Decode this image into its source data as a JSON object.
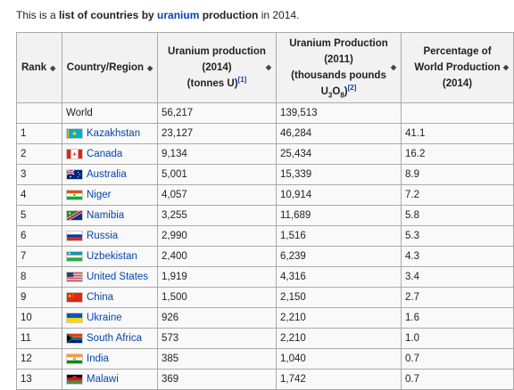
{
  "intro": {
    "prefix": "This is a ",
    "bold1": "list of countries by ",
    "link": "uranium",
    "bold2": " production",
    "suffix": " in 2014."
  },
  "table": {
    "headers": {
      "rank": "Rank",
      "country": "Country/Region",
      "prod2014_line1": "Uranium production",
      "prod2014_line2": "(2014)",
      "prod2014_line3": "(tonnes U)",
      "prod2014_ref": "[1]",
      "prod2011_line1": "Uranium Production",
      "prod2011_line2": "(2011)",
      "prod2011_line3": "(thousands pounds",
      "prod2011_u": "U",
      "prod2011_sub1": "3",
      "prod2011_o": "O",
      "prod2011_sub2": "8",
      "prod2011_close": ")",
      "prod2011_ref": "[2]",
      "pct_line1": "Percentage of",
      "pct_line2": "World Production",
      "pct_line3": "(2014)"
    },
    "world": {
      "rank": "",
      "country": "World",
      "prod2014": "56,217",
      "prod2011": "139,513",
      "pct": ""
    },
    "rows": [
      {
        "rank": "1",
        "country": "Kazakhstan",
        "flag": "kazakhstan-flag-icon",
        "prod2014": "23,127",
        "prod2011": "46,284",
        "pct": "41.1"
      },
      {
        "rank": "2",
        "country": "Canada",
        "flag": "canada-flag-icon",
        "prod2014": "9,134",
        "prod2011": "25,434",
        "pct": "16.2"
      },
      {
        "rank": "3",
        "country": "Australia",
        "flag": "australia-flag-icon",
        "prod2014": "5,001",
        "prod2011": "15,339",
        "pct": "8.9"
      },
      {
        "rank": "4",
        "country": "Niger",
        "flag": "niger-flag-icon",
        "prod2014": "4,057",
        "prod2011": "10,914",
        "pct": "7.2"
      },
      {
        "rank": "5",
        "country": "Namibia",
        "flag": "namibia-flag-icon",
        "prod2014": "3,255",
        "prod2011": "11,689",
        "pct": "5.8"
      },
      {
        "rank": "6",
        "country": "Russia",
        "flag": "russia-flag-icon",
        "prod2014": "2,990",
        "prod2011": "1,516",
        "pct": "5.3"
      },
      {
        "rank": "7",
        "country": "Uzbekistan",
        "flag": "uzbekistan-flag-icon",
        "prod2014": "2,400",
        "prod2011": "6,239",
        "pct": "4.3"
      },
      {
        "rank": "8",
        "country": "United States",
        "flag": "united-states-flag-icon",
        "prod2014": "1,919",
        "prod2011": "4,316",
        "pct": "3.4"
      },
      {
        "rank": "9",
        "country": "China",
        "flag": "china-flag-icon",
        "prod2014": "1,500",
        "prod2011": "2,150",
        "pct": "2.7"
      },
      {
        "rank": "10",
        "country": "Ukraine",
        "flag": "ukraine-flag-icon",
        "prod2014": "926",
        "prod2011": "2,210",
        "pct": "1.6"
      },
      {
        "rank": "11",
        "country": "South Africa",
        "flag": "south-africa-flag-icon",
        "prod2014": "573",
        "prod2011": "2,210",
        "pct": "1.0"
      },
      {
        "rank": "12",
        "country": "India",
        "flag": "india-flag-icon",
        "prod2014": "385",
        "prod2011": "1,040",
        "pct": "0.7"
      },
      {
        "rank": "13",
        "country": "Malawi",
        "flag": "malawi-flag-icon",
        "prod2014": "369",
        "prod2011": "1,742",
        "pct": "0.7"
      }
    ]
  },
  "colors": {
    "link": "#0645ad",
    "header_bg": "#f2f2f2",
    "cell_bg": "#f9f9f9",
    "border": "#aaaaaa"
  }
}
